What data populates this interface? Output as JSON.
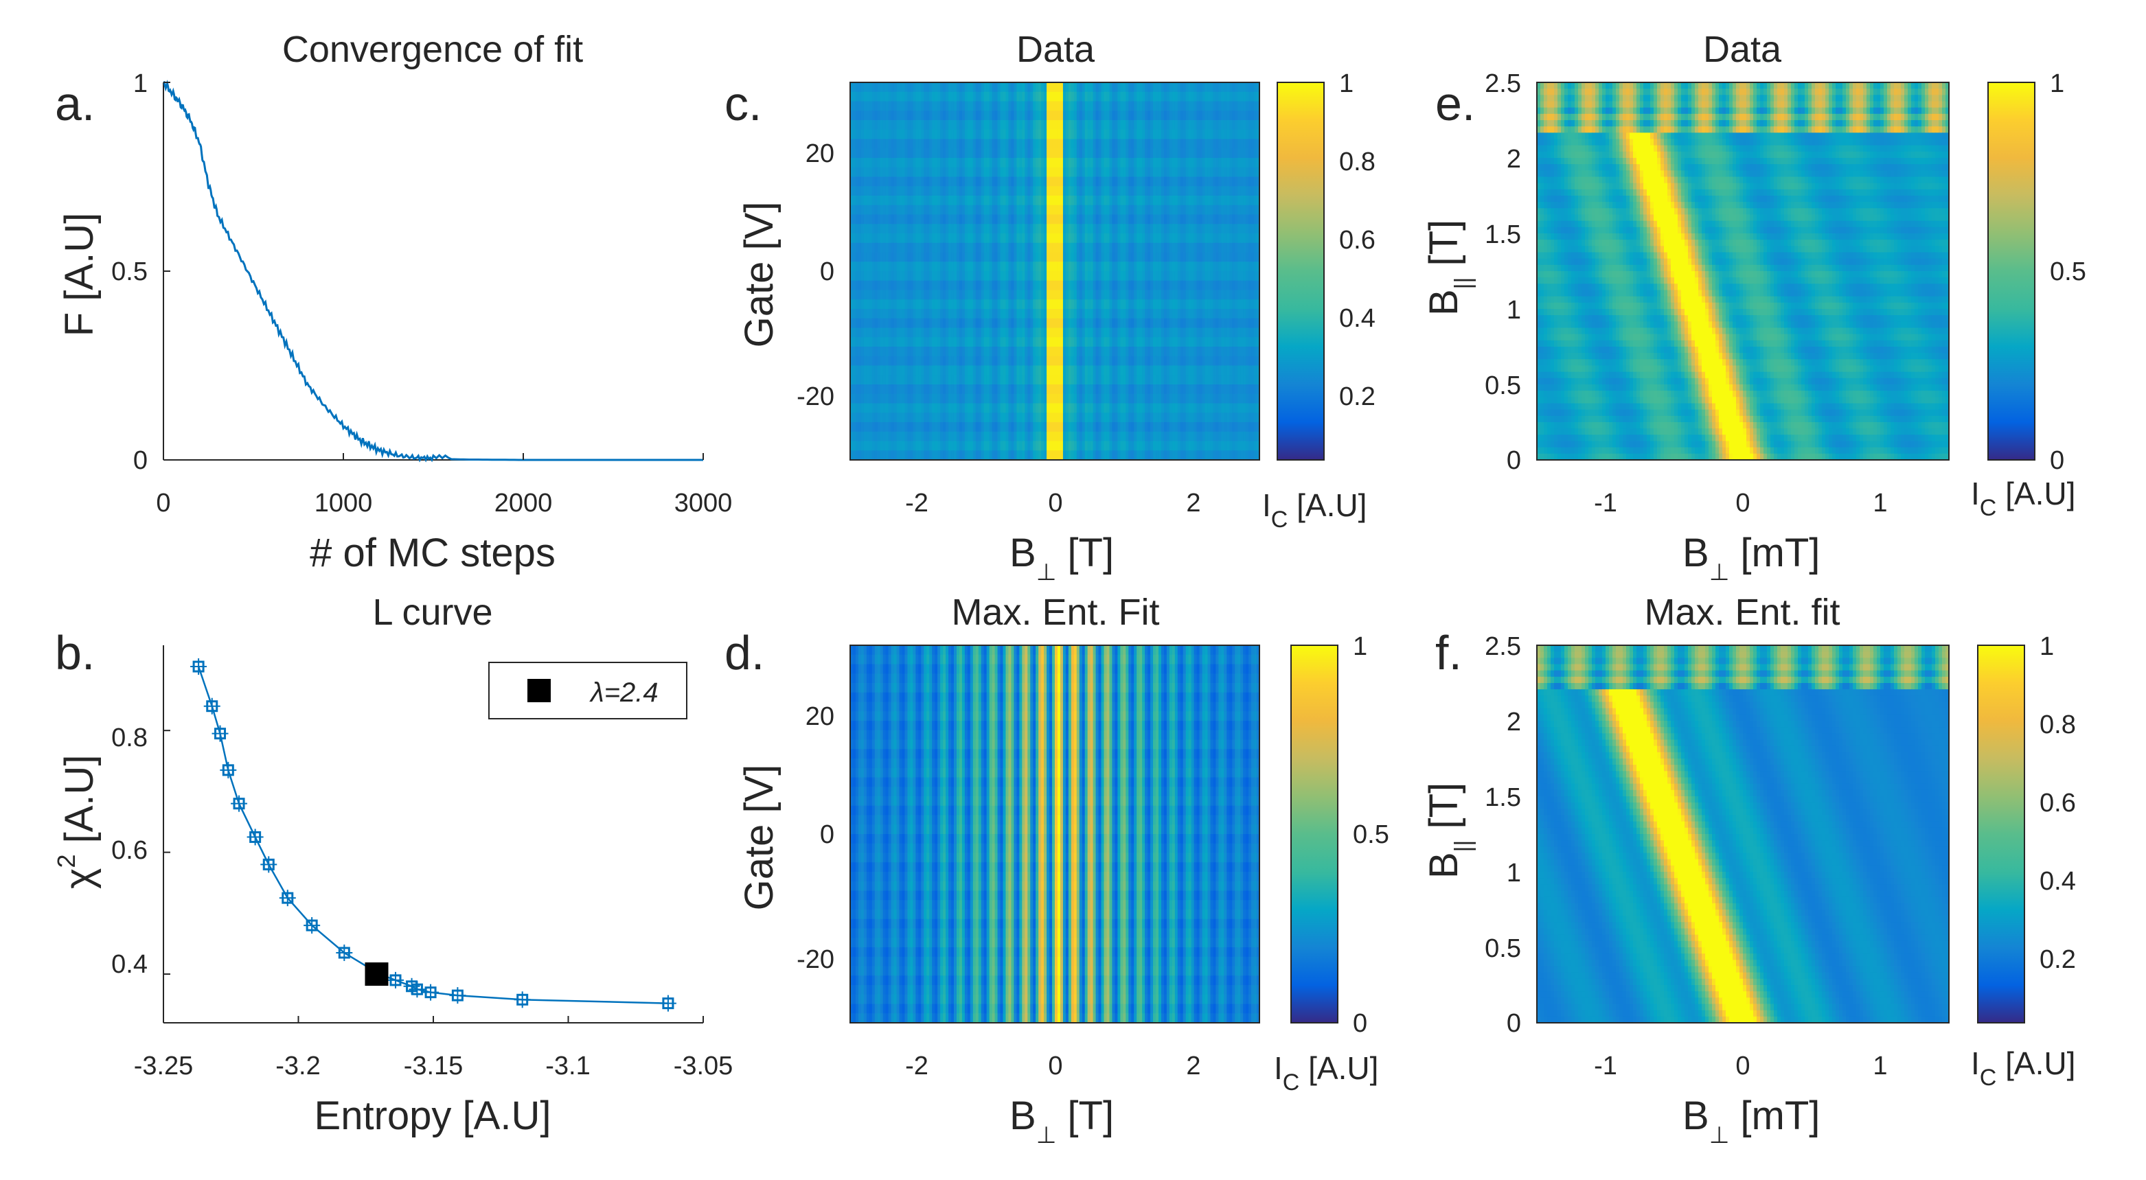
{
  "figure": {
    "panels": [
      "a.",
      "b.",
      "c.",
      "d.",
      "e.",
      "f."
    ]
  },
  "chart_data": [
    {
      "id": "a",
      "type": "line",
      "letter": "a.",
      "title": "Convergence of fit",
      "xlabel": "# of MC steps",
      "ylabel": "F [A.U]",
      "xlim": [
        0,
        3000
      ],
      "ylim": [
        0,
        1
      ],
      "xticks": [
        "0",
        "1000",
        "2000",
        "3000"
      ],
      "yticks": [
        "0",
        "0.5",
        "1"
      ],
      "color": "#0072BD",
      "x": [
        0,
        50,
        100,
        150,
        200,
        250,
        300,
        400,
        500,
        600,
        700,
        800,
        900,
        1000,
        1100,
        1200,
        1300,
        1400,
        1500,
        1700,
        2000,
        2500,
        3000
      ],
      "y": [
        1.0,
        0.97,
        0.94,
        0.9,
        0.84,
        0.73,
        0.65,
        0.56,
        0.47,
        0.38,
        0.29,
        0.2,
        0.14,
        0.09,
        0.05,
        0.025,
        0.012,
        0.006,
        0.003,
        0.001,
        0.0,
        0.0,
        0.0
      ]
    },
    {
      "id": "b",
      "type": "scatter",
      "letter": "b.",
      "title": "L curve",
      "xlabel": "Entropy [A.U]",
      "ylabel": "χ² [A.U]",
      "ylabel_main": "χ",
      "ylabel_sup": "2",
      "ylabel_rest": " [A.U]",
      "xlim": [
        -3.25,
        -3.05
      ],
      "ylim": [
        0.32,
        0.94
      ],
      "xticks": [
        "-3.25",
        "-3.2",
        "-3.15",
        "-3.1",
        "-3.05"
      ],
      "yticks": [
        "0.4",
        "0.6",
        "0.8"
      ],
      "legend": "λ=2.4",
      "legend_placement": "top-right",
      "color": "#0072BD",
      "x": [
        -3.237,
        -3.232,
        -3.229,
        -3.226,
        -3.222,
        -3.216,
        -3.211,
        -3.204,
        -3.195,
        -3.183,
        -3.17,
        -3.164,
        -3.158,
        -3.156,
        -3.151,
        -3.141,
        -3.117,
        -3.063
      ],
      "y": [
        0.905,
        0.84,
        0.795,
        0.735,
        0.68,
        0.625,
        0.58,
        0.525,
        0.48,
        0.435,
        0.4,
        0.39,
        0.38,
        0.375,
        0.37,
        0.365,
        0.358,
        0.352
      ],
      "highlight": {
        "x": -3.171,
        "y": 0.4
      }
    },
    {
      "id": "c",
      "type": "heatmap",
      "letter": "c.",
      "title": "Data",
      "xlabel_main": "B",
      "xlabel_sub": "⊥",
      "xlabel_unit": " [T]",
      "ylabel": "Gate [V]",
      "xlim": [
        -3,
        3
      ],
      "ylim": [
        -30,
        30
      ],
      "xticks": [
        "-2",
        "0",
        "2"
      ],
      "yticks": [
        "20",
        "0",
        "-20"
      ],
      "colorbar_ticks": [
        "1",
        "0.8",
        "0.6",
        "0.4",
        "0.2"
      ],
      "colorbar_label_main": "I",
      "colorbar_label_sub": "C",
      "colorbar_label_unit": " [A.U]",
      "colormap": "parula"
    },
    {
      "id": "d",
      "type": "heatmap",
      "letter": "d.",
      "title": "Max. Ent. Fit",
      "xlabel_main": "B",
      "xlabel_sub": "⊥",
      "xlabel_unit": " [T]",
      "ylabel": "Gate [V]",
      "xlim": [
        -3,
        3
      ],
      "ylim": [
        -30,
        30
      ],
      "xticks": [
        "-2",
        "0",
        "2"
      ],
      "yticks": [
        "20",
        "0",
        "-20"
      ],
      "colorbar_ticks": [
        "1",
        "0.5",
        "0"
      ],
      "colorbar_label_main": "I",
      "colorbar_label_sub": "C",
      "colorbar_label_unit": " [A.U]",
      "colormap": "parula"
    },
    {
      "id": "e",
      "type": "heatmap",
      "letter": "e.",
      "title": "Data",
      "xlabel_main": "B",
      "xlabel_sub": "⊥",
      "xlabel_unit": " [mT]",
      "ylabel_main": "B",
      "ylabel_sub": "||",
      "ylabel_unit": " [T]",
      "xlim": [
        -1.5,
        1.5
      ],
      "ylim": [
        0,
        2.5
      ],
      "xticks": [
        "-1",
        "0",
        "1"
      ],
      "yticks": [
        "2.5",
        "2",
        "1.5",
        "1",
        "0.5",
        "0"
      ],
      "colorbar_ticks": [
        "1",
        "0.5",
        "0"
      ],
      "colorbar_label_main": "I",
      "colorbar_label_sub": "C",
      "colorbar_label_unit": " [A.U]",
      "colormap": "parula"
    },
    {
      "id": "f",
      "type": "heatmap",
      "letter": "f.",
      "title": "Max. Ent. fit",
      "xlabel_main": "B",
      "xlabel_sub": "⊥",
      "xlabel_unit": " [mT]",
      "ylabel_main": "B",
      "ylabel_sub": "||",
      "ylabel_unit": " [T]",
      "xlim": [
        -1.5,
        1.5
      ],
      "ylim": [
        0,
        2.5
      ],
      "xticks": [
        "-1",
        "0",
        "1"
      ],
      "yticks": [
        "2.5",
        "2",
        "1.5",
        "1",
        "0.5",
        "0"
      ],
      "colorbar_ticks": [
        "1",
        "0.8",
        "0.6",
        "0.4",
        "0.2"
      ],
      "colorbar_label_main": "I",
      "colorbar_label_sub": "C",
      "colorbar_label_unit": " [A.U]",
      "colormap": "parula"
    }
  ]
}
